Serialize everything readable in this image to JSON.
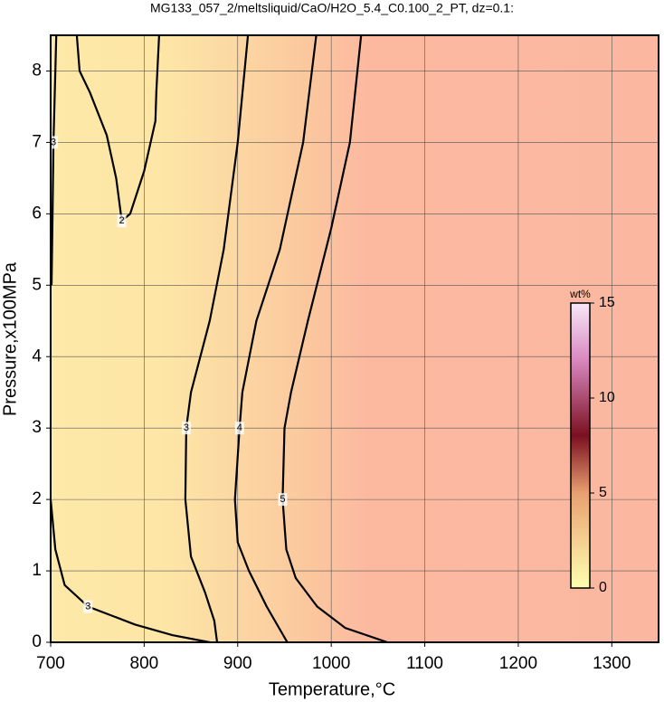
{
  "chart_data": {
    "type": "contour",
    "title": "MG133_057_2/meltsliquid/CaO/H2O_5.4_C0.100_2_PT, dz=0.1:",
    "x_label": "Temperature,°C",
    "y_label": "Pressure,x100MPa",
    "xlim": [
      700,
      1350
    ],
    "ylim": [
      0,
      8.5
    ],
    "xticks": [
      700,
      800,
      900,
      1000,
      1100,
      1200,
      1300
    ],
    "yticks": [
      0,
      1,
      2,
      3,
      4,
      5,
      6,
      7,
      8
    ],
    "grid": true,
    "contour_color": "#000000",
    "contours": [
      {
        "level": 2,
        "x": [
          728,
          731,
          742,
          760,
          770,
          776,
          785,
          800,
          812,
          813,
          816
        ],
        "y": [
          8.5,
          8.0,
          7.7,
          7.1,
          6.5,
          5.9,
          6.0,
          6.6,
          7.3,
          7.7,
          8.5
        ]
      },
      {
        "level": 3,
        "x": [
          911,
          900,
          885,
          870,
          850,
          845,
          844,
          850,
          865,
          875,
          878
        ],
        "y": [
          8.5,
          7.0,
          5.5,
          4.5,
          3.5,
          3.0,
          2.0,
          1.2,
          0.7,
          0.3,
          0
        ]
      },
      {
        "level": 4,
        "x": [
          984,
          970,
          945,
          920,
          905,
          902,
          897,
          900,
          912,
          931,
          953
        ],
        "y": [
          8.5,
          7.0,
          5.5,
          4.5,
          3.5,
          3.0,
          2.0,
          1.4,
          1.0,
          0.5,
          0
        ]
      },
      {
        "level": 5,
        "x": [
          1032,
          1020,
          1000,
          975,
          957,
          950,
          948,
          952,
          962,
          985,
          1015,
          1060
        ],
        "y": [
          8.5,
          7.0,
          5.8,
          4.5,
          3.5,
          3.0,
          2.0,
          1.3,
          0.9,
          0.5,
          0.2,
          0
        ]
      },
      {
        "level": 3,
        "x": [
          700,
          705,
          715,
          740,
          790,
          830,
          870
        ],
        "y": [
          2.0,
          1.3,
          0.8,
          0.5,
          0.25,
          0.1,
          0
        ]
      },
      {
        "level": 3,
        "x": [
          706,
          705,
          703,
          702,
          701
        ],
        "y": [
          8.5,
          8.0,
          7.0,
          6.0,
          5.0
        ]
      }
    ],
    "colorbar": {
      "label": "wt%",
      "lim": [
        0,
        15
      ],
      "ticks": [
        0,
        5,
        10,
        15
      ],
      "stops": [
        {
          "value": 0,
          "color": "#ffffb0"
        },
        {
          "value": 5,
          "color": "#e8a070"
        },
        {
          "value": 8,
          "color": "#7a1020"
        },
        {
          "value": 12,
          "color": "#d888c0"
        },
        {
          "value": 15,
          "color": "#f8e8f8"
        }
      ]
    }
  }
}
